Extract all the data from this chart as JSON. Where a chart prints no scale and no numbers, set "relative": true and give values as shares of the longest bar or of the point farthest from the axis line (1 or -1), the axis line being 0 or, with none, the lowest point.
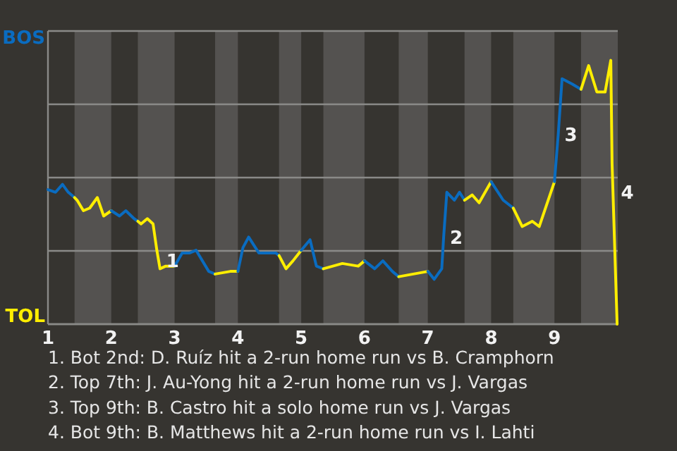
{
  "chart_data": {
    "type": "line",
    "relative": true,
    "series": [
      {
        "name": "BOS",
        "color": "#0a6cc0",
        "x": [
          1,
          1.12,
          1.23,
          1.32,
          1.42
        ],
        "values": [
          0.51,
          0.5,
          0.53,
          0.5,
          0.48
        ]
      },
      {
        "name": "TOL",
        "color": "#ffee00",
        "x": [
          1.42,
          1.46,
          1.56,
          1.66,
          1.78,
          1.88,
          1.94,
          2
        ],
        "values": [
          0.48,
          0.47,
          0.43,
          0.44,
          0.48,
          0.41,
          0.42,
          0.43
        ]
      },
      {
        "color": "#0a6cc0",
        "x": [
          2,
          2.13,
          2.23,
          2.36,
          2.42
        ],
        "values": [
          0.43,
          0.41,
          0.43,
          0.4,
          0.39
        ]
      },
      {
        "color": "#ffee00",
        "x": [
          2.42,
          2.47,
          2.57,
          2.66,
          2.72,
          2.77,
          2.86,
          3
        ],
        "values": [
          0.39,
          0.38,
          0.4,
          0.38,
          0.28,
          0.21,
          0.22,
          0.22
        ]
      },
      {
        "color": "#0a6cc0",
        "x": [
          3,
          3.12,
          3.24,
          3.34,
          3.54,
          3.64
        ],
        "values": [
          0.22,
          0.27,
          0.27,
          0.28,
          0.2,
          0.19
        ]
      },
      {
        "color": "#ffee00",
        "x": [
          3.64,
          3.88,
          4
        ],
        "values": [
          0.19,
          0.2,
          0.2
        ]
      },
      {
        "color": "#0a6cc0",
        "x": [
          4,
          4.08,
          4.17,
          4.33,
          4.6,
          4.65
        ],
        "values": [
          0.2,
          0.29,
          0.33,
          0.27,
          0.27,
          0.26
        ]
      },
      {
        "color": "#ffee00",
        "x": [
          4.65,
          4.76,
          4.87,
          5
        ],
        "values": [
          0.26,
          0.21,
          0.24,
          0.28
        ]
      },
      {
        "color": "#0a6cc0",
        "x": [
          5,
          5.14,
          5.24,
          5.35
        ],
        "values": [
          0.28,
          0.32,
          0.22,
          0.21
        ]
      },
      {
        "color": "#ffee00",
        "x": [
          5.35,
          5.65,
          5.9,
          6
        ],
        "values": [
          0.21,
          0.23,
          0.22,
          0.24
        ]
      },
      {
        "color": "#0a6cc0",
        "x": [
          6,
          6.16,
          6.29,
          6.44,
          6.54
        ],
        "values": [
          0.24,
          0.21,
          0.24,
          0.2,
          0.18
        ]
      },
      {
        "color": "#ffee00",
        "x": [
          6.54,
          7
        ],
        "values": [
          0.18,
          0.2
        ]
      },
      {
        "color": "#0a6cc0",
        "x": [
          7,
          7.1,
          7.22,
          7.25,
          7.3,
          7.42,
          7.5,
          7.58
        ],
        "values": [
          0.2,
          0.17,
          0.21,
          0.33,
          0.5,
          0.47,
          0.5,
          0.47
        ]
      },
      {
        "color": "#ffee00",
        "x": [
          7.58,
          7.7,
          7.81,
          8
        ],
        "values": [
          0.47,
          0.49,
          0.46,
          0.54
        ]
      },
      {
        "color": "#0a6cc0",
        "x": [
          8,
          8.19,
          8.35
        ],
        "values": [
          0.54,
          0.47,
          0.44
        ]
      },
      {
        "color": "#ffee00",
        "x": [
          8.35,
          8.49,
          8.65,
          8.76,
          9
        ],
        "values": [
          0.44,
          0.37,
          0.39,
          0.37,
          0.54
        ]
      },
      {
        "color": "#0a6cc0",
        "x": [
          9,
          9.06,
          9.12,
          9.28,
          9.42
        ],
        "values": [
          0.54,
          0.72,
          0.93,
          0.91,
          0.89
        ]
      },
      {
        "color": "#ffee00",
        "x": [
          9.42,
          9.54,
          9.67,
          9.8,
          9.89,
          9.91,
          9.99
        ],
        "values": [
          0.89,
          0.98,
          0.88,
          0.88,
          1,
          0.61,
          0
        ]
      }
    ],
    "xlim": [
      1,
      10
    ],
    "xticks": [
      1,
      2,
      3,
      4,
      5,
      6,
      7,
      8,
      9
    ],
    "grid": "y",
    "marker": "none",
    "bands": [
      {
        "axis": "x",
        "from": 1.42,
        "to": 2,
        "color": "#545250"
      },
      {
        "axis": "x",
        "from": 2.42,
        "to": 3,
        "color": "#545250"
      },
      {
        "axis": "x",
        "from": 3.64,
        "to": 4,
        "color": "#545250"
      },
      {
        "axis": "x",
        "from": 4.65,
        "to": 5,
        "color": "#545250"
      },
      {
        "axis": "x",
        "from": 5.35,
        "to": 6,
        "color": "#545250"
      },
      {
        "axis": "x",
        "from": 6.54,
        "to": 7,
        "color": "#545250"
      },
      {
        "axis": "x",
        "from": 7.58,
        "to": 8,
        "color": "#545250"
      },
      {
        "axis": "x",
        "from": 8.35,
        "to": 9,
        "color": "#545250"
      },
      {
        "axis": "x",
        "from": 9.42,
        "to": 10,
        "color": "#545250"
      }
    ],
    "annotations": [
      {
        "text": "1",
        "x": 2.77,
        "y": 0.24
      },
      {
        "text": "2",
        "x": 7.25,
        "y": 0.33
      },
      {
        "text": "3",
        "x": 9.06,
        "y": 0.72
      },
      {
        "text": "4",
        "x": 9.95,
        "y": 0.5
      },
      "1. Bot 2nd: D. Ruíz hit a 2-run home run vs B. Cramphorn",
      "2. Top 7th: J. Au-Yong hit a 2-run home run vs J. Vargas",
      "3. Top 9th: B. Castro hit a solo home run vs J. Vargas",
      "4. Bot 9th: B. Matthews hit a 2-run home run vs I. Lahti"
    ]
  }
}
